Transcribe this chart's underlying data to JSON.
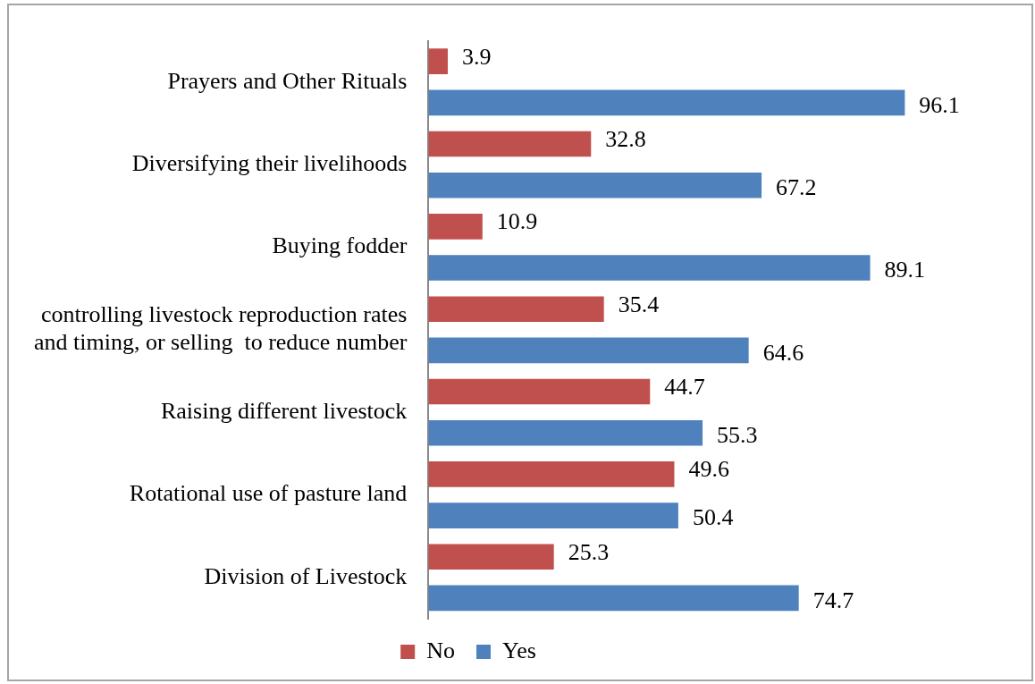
{
  "chart_data": {
    "type": "bar",
    "orientation": "horizontal",
    "categories": [
      "Prayers and Other Rituals",
      "Diversifying their livelihoods",
      "Buying fodder",
      "controlling livestock reproduction rates and timing, or selling  to reduce number",
      "Raising different livestock",
      "Rotational use of pasture land",
      "Division of Livestock"
    ],
    "series": [
      {
        "name": "No",
        "color": "#c0504d",
        "values": [
          3.9,
          32.8,
          10.9,
          35.4,
          44.7,
          49.6,
          25.3
        ]
      },
      {
        "name": "Yes",
        "color": "#4f81bd",
        "values": [
          96.1,
          67.2,
          89.1,
          64.6,
          55.3,
          50.4,
          74.7
        ]
      }
    ],
    "data_labels": true,
    "legend": "bottom"
  }
}
